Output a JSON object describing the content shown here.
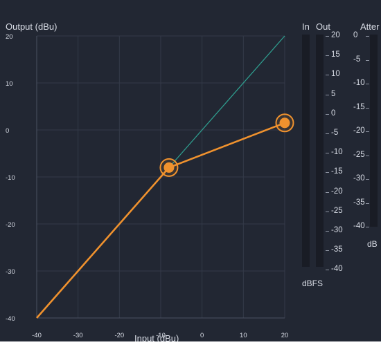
{
  "graph": {
    "y_title": "Output (dBu)",
    "x_title": "Input (dBu)",
    "y_ticks": [
      "20",
      "10",
      "0",
      "-10",
      "-20",
      "-30",
      "-40"
    ],
    "x_ticks": [
      "-40",
      "-30",
      "-20",
      "-10",
      "0",
      "10",
      "20"
    ],
    "colors": {
      "curve": "#f0922e",
      "reference": "#2f9e8f",
      "grid": "#343a48",
      "axis": "#4a5060"
    }
  },
  "chart_data": {
    "type": "line",
    "xlabel": "Input (dBu)",
    "ylabel": "Output (dBu)",
    "xlim": [
      -40,
      20
    ],
    "ylim": [
      -40,
      20
    ],
    "grid": true,
    "series": [
      {
        "x": [
          -40,
          -8,
          20
        ],
        "y": [
          -40,
          -8,
          1.5
        ]
      },
      {
        "x": [
          -8,
          20
        ],
        "y": [
          -8,
          20
        ]
      }
    ],
    "control_points": [
      {
        "x": -8,
        "y": -8
      },
      {
        "x": 20,
        "y": 1.5
      }
    ]
  },
  "meters": {
    "in_label": "In",
    "out_label": "Out",
    "unit": "dBFS",
    "scale": [
      "20",
      "15",
      "10",
      "5",
      "0",
      "-5",
      "-10",
      "-15",
      "-20",
      "-25",
      "-30",
      "-35",
      "-40"
    ]
  },
  "attenuation": {
    "title": "Atter",
    "unit": "dB",
    "scale": [
      "0",
      "-5",
      "-10",
      "-15",
      "-20",
      "-25",
      "-30",
      "-35",
      "-40"
    ]
  }
}
